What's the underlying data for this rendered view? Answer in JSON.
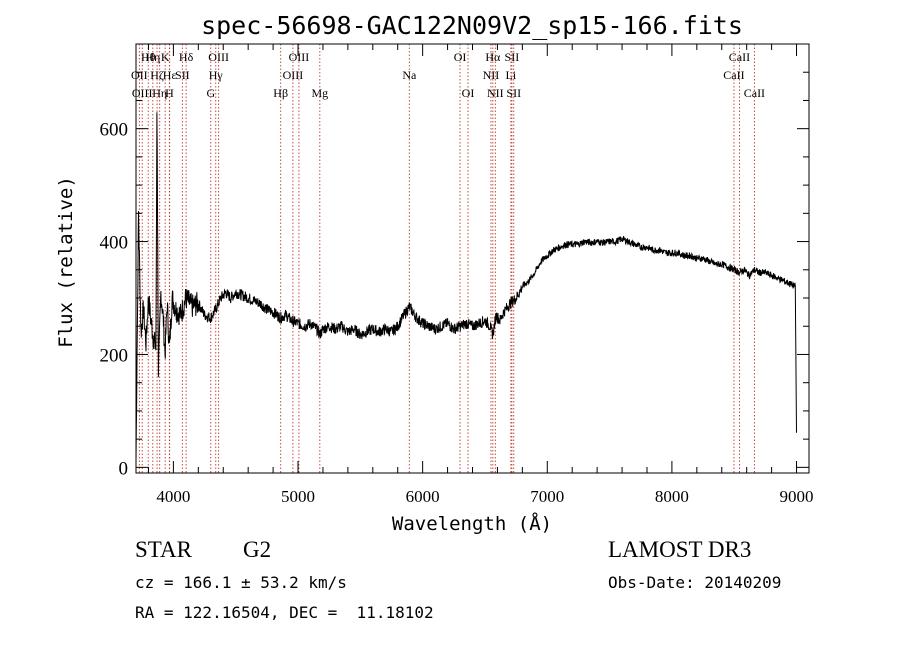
{
  "chart_data": {
    "type": "line",
    "title": "spec-56698-GAC122N09V2_sp15-166.fits",
    "xlabel": "Wavelength (Å)",
    "ylabel": "Flux (relative)",
    "xlim": [
      3700,
      9100
    ],
    "ylim": [
      -10,
      750
    ],
    "xticks": [
      4000,
      5000,
      6000,
      7000,
      8000,
      9000
    ],
    "yticks": [
      0,
      200,
      400,
      600
    ],
    "xtick_labels": [
      "4000",
      "5000",
      "6000",
      "7000",
      "8000",
      "9000"
    ],
    "ytick_labels": [
      "0",
      "200",
      "400",
      "600"
    ],
    "series": [
      {
        "color": "#000000",
        "x": [
          3700,
          3720,
          3740,
          3760,
          3780,
          3800,
          3820,
          3840,
          3860,
          3868,
          3880,
          3900,
          3920,
          3933,
          3950,
          3968,
          3990,
          4020,
          4060,
          4100,
          4150,
          4200,
          4250,
          4300,
          4340,
          4380,
          4420,
          4460,
          4500,
          4550,
          4600,
          4650,
          4700,
          4750,
          4800,
          4861,
          4900,
          4950,
          5000,
          5050,
          5100,
          5150,
          5175,
          5200,
          5250,
          5300,
          5350,
          5400,
          5450,
          5500,
          5550,
          5600,
          5650,
          5700,
          5750,
          5800,
          5850,
          5893,
          5950,
          6000,
          6050,
          6100,
          6150,
          6200,
          6250,
          6300,
          6350,
          6400,
          6450,
          6500,
          6540,
          6563,
          6590,
          6620,
          6650,
          6700,
          6750,
          6800,
          6850,
          6900,
          6950,
          7000,
          7050,
          7100,
          7150,
          7200,
          7250,
          7300,
          7350,
          7400,
          7450,
          7500,
          7550,
          7600,
          7650,
          7700,
          7750,
          7800,
          7850,
          7900,
          7950,
          8000,
          8050,
          8100,
          8150,
          8200,
          8250,
          8300,
          8350,
          8400,
          8450,
          8500,
          8542,
          8580,
          8620,
          8662,
          8700,
          8750,
          8800,
          8850,
          8900,
          8950,
          8990,
          9000
        ],
        "y": [
          10,
          450,
          240,
          280,
          220,
          300,
          260,
          230,
          210,
          660,
          170,
          310,
          260,
          200,
          290,
          210,
          300,
          280,
          270,
          300,
          285,
          290,
          270,
          265,
          280,
          300,
          310,
          300,
          310,
          305,
          300,
          295,
          290,
          280,
          275,
          265,
          270,
          260,
          255,
          250,
          255,
          245,
          235,
          245,
          250,
          245,
          250,
          240,
          245,
          235,
          240,
          245,
          240,
          245,
          240,
          250,
          270,
          285,
          265,
          255,
          250,
          245,
          250,
          255,
          245,
          250,
          255,
          250,
          255,
          260,
          250,
          235,
          270,
          260,
          275,
          290,
          300,
          320,
          330,
          345,
          365,
          375,
          385,
          390,
          395,
          395,
          395,
          400,
          398,
          400,
          398,
          400,
          400,
          405,
          400,
          395,
          390,
          390,
          385,
          385,
          380,
          380,
          380,
          375,
          375,
          370,
          370,
          365,
          360,
          360,
          355,
          350,
          345,
          350,
          340,
          350,
          345,
          345,
          340,
          335,
          330,
          325,
          320,
          60
        ]
      }
    ],
    "lines": [
      {
        "wl": 3727,
        "label": "OII",
        "row": 2
      },
      {
        "wl": 3750,
        "label": "OIII",
        "row": 3
      },
      {
        "wl": 3798,
        "label": "Hθ",
        "row": 1
      },
      {
        "wl": 3835,
        "label": "Hη",
        "row": 1
      },
      {
        "wl": 3869,
        "label": "Hζ",
        "row": 2
      },
      {
        "wl": 3890,
        "label": "Hη",
        "row": 3
      },
      {
        "wl": 3934,
        "label": "K",
        "row": 1
      },
      {
        "wl": 3970,
        "label": "Hε",
        "row": 2
      },
      {
        "wl": 3968,
        "label": "H",
        "row": 3
      },
      {
        "wl": 4072,
        "label": "SII",
        "row": 2
      },
      {
        "wl": 4102,
        "label": "Hδ",
        "row": 1
      },
      {
        "wl": 4300,
        "label": "G",
        "row": 3
      },
      {
        "wl": 4340,
        "label": "Hγ",
        "row": 2
      },
      {
        "wl": 4363,
        "label": "OIII",
        "row": 1
      },
      {
        "wl": 4861,
        "label": "Hβ",
        "row": 3
      },
      {
        "wl": 4959,
        "label": "OIII",
        "row": 2
      },
      {
        "wl": 5007,
        "label": "OIII",
        "row": 1
      },
      {
        "wl": 5175,
        "label": "Mg",
        "row": 3
      },
      {
        "wl": 5893,
        "label": "Na",
        "row": 2
      },
      {
        "wl": 6300,
        "label": "OI",
        "row": 1
      },
      {
        "wl": 6364,
        "label": "OI",
        "row": 3
      },
      {
        "wl": 6548,
        "label": "NII",
        "row": 2
      },
      {
        "wl": 6563,
        "label": "Hα",
        "row": 1
      },
      {
        "wl": 6583,
        "label": "NII",
        "row": 3
      },
      {
        "wl": 6708,
        "label": "Li",
        "row": 2
      },
      {
        "wl": 6716,
        "label": "SII",
        "row": 1
      },
      {
        "wl": 6731,
        "label": "SII",
        "row": 3
      },
      {
        "wl": 8498,
        "label": "CaII",
        "row": 2
      },
      {
        "wl": 8542,
        "label": "CaII",
        "row": 1
      },
      {
        "wl": 8662,
        "label": "CaII",
        "row": 3
      }
    ]
  },
  "info": {
    "class_label": "STAR",
    "subclass": "G2",
    "survey": "LAMOST DR3",
    "cz": "cz = 166.1 ± 53.2 km/s",
    "obs_date": "Obs-Date: 20140209",
    "radec": "RA = 122.16504, DEC =  11.18102"
  }
}
